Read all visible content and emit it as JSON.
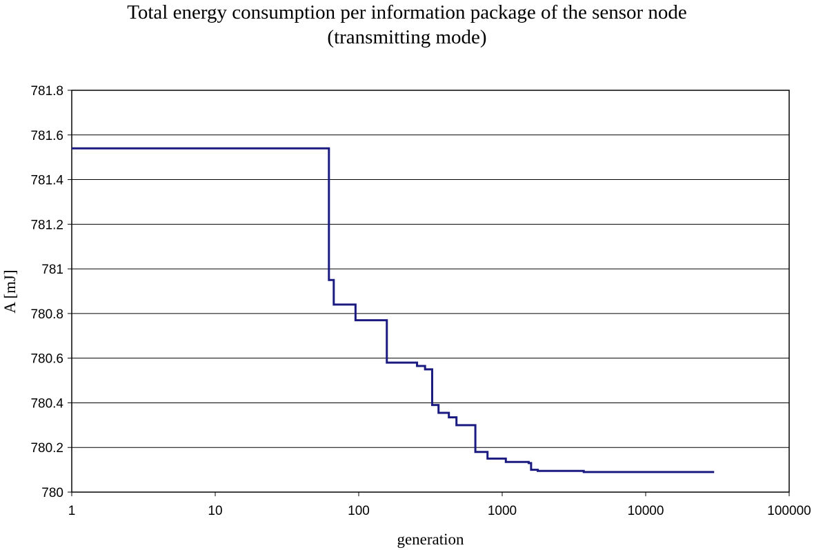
{
  "chart_data": {
    "type": "line",
    "title": [
      "Total energy consumption per information package of the sensor node",
      "(transmitting mode)"
    ],
    "xlabel": "generation",
    "ylabel": "A [mJ]",
    "x_scale": "log",
    "xlim": [
      1,
      100000
    ],
    "ylim": [
      780,
      781.8
    ],
    "x_ticks": [
      1,
      10,
      100,
      1000,
      10000,
      100000
    ],
    "x_tick_labels": [
      "1",
      "10",
      "100",
      "1000",
      "10000",
      "100000"
    ],
    "y_ticks": [
      780,
      780.2,
      780.4,
      780.6,
      780.8,
      781,
      781.2,
      781.4,
      781.6,
      781.8
    ],
    "y_tick_labels": [
      "780",
      "780.2",
      "780.4",
      "780.6",
      "780.8",
      "781",
      "781.2",
      "781.4",
      "781.6",
      "781.8"
    ],
    "grid": "horizontal",
    "legend": "none",
    "line_style": "step",
    "series": [
      {
        "color": "#1a1a80",
        "points": [
          [
            1,
            781.54
          ],
          [
            62,
            781.54
          ],
          [
            62,
            780.95
          ],
          [
            67,
            780.95
          ],
          [
            67,
            780.84
          ],
          [
            95,
            780.84
          ],
          [
            95,
            780.77
          ],
          [
            157,
            780.77
          ],
          [
            157,
            780.58
          ],
          [
            255,
            780.58
          ],
          [
            255,
            780.565
          ],
          [
            290,
            780.565
          ],
          [
            290,
            780.55
          ],
          [
            325,
            780.55
          ],
          [
            325,
            780.39
          ],
          [
            360,
            780.39
          ],
          [
            360,
            780.355
          ],
          [
            425,
            780.355
          ],
          [
            425,
            780.335
          ],
          [
            480,
            780.335
          ],
          [
            480,
            780.3
          ],
          [
            650,
            780.3
          ],
          [
            650,
            780.18
          ],
          [
            790,
            780.18
          ],
          [
            790,
            780.15
          ],
          [
            1060,
            780.15
          ],
          [
            1060,
            780.135
          ],
          [
            1530,
            780.135
          ],
          [
            1530,
            780.13
          ],
          [
            1590,
            780.13
          ],
          [
            1590,
            780.1
          ],
          [
            1770,
            780.1
          ],
          [
            1770,
            780.095
          ],
          [
            3700,
            780.095
          ],
          [
            3700,
            780.09
          ],
          [
            30000,
            780.09
          ]
        ]
      }
    ]
  }
}
